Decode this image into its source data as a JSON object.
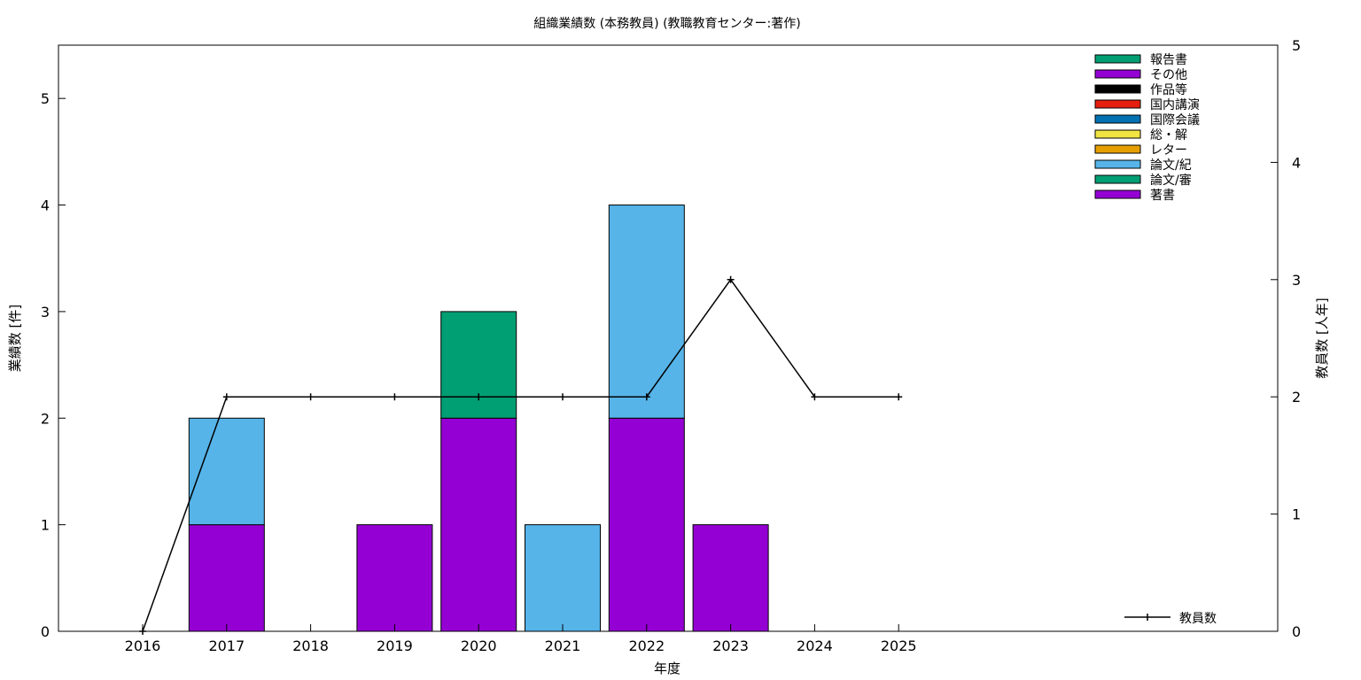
{
  "chart_data": {
    "type": "bar",
    "title": "組織業績数 (本務教員) (教職教育センター:著作)",
    "xlabel": "年度",
    "ylabel": "業績数 [件]",
    "y2label": "教員数 [人年]",
    "categories": [
      "2016",
      "2017",
      "2018",
      "2019",
      "2020",
      "2021",
      "2022",
      "2023",
      "2024",
      "2025"
    ],
    "ylim": [
      0,
      5.5
    ],
    "y2lim": [
      0,
      5
    ],
    "yticks": [
      "0",
      "1",
      "2",
      "3",
      "4",
      "5"
    ],
    "y2ticks": [
      "0",
      "1",
      "2",
      "3",
      "4",
      "5"
    ],
    "stacked": true,
    "legend_position": "top-right",
    "series": [
      {
        "name": "報告書",
        "color": "#009e73",
        "values": [
          0,
          0,
          0,
          0,
          0,
          0,
          0,
          0,
          0,
          0
        ]
      },
      {
        "name": "その他",
        "color": "#9400d3",
        "values": [
          0,
          0,
          0,
          0,
          0,
          0,
          0,
          0,
          0,
          0
        ]
      },
      {
        "name": "作品等",
        "color": "#000000",
        "values": [
          0,
          0,
          0,
          0,
          0,
          0,
          0,
          0,
          0,
          0
        ]
      },
      {
        "name": "国内講演",
        "color": "#e51e10",
        "values": [
          0,
          0,
          0,
          0,
          0,
          0,
          0,
          0,
          0,
          0
        ]
      },
      {
        "name": "国際会議",
        "color": "#0072b2",
        "values": [
          0,
          0,
          0,
          0,
          0,
          0,
          0,
          0,
          0,
          0
        ]
      },
      {
        "name": "総・解",
        "color": "#f0e442",
        "values": [
          0,
          0,
          0,
          0,
          0,
          0,
          0,
          0,
          0,
          0
        ]
      },
      {
        "name": "レター",
        "color": "#e69f00",
        "values": [
          0,
          0,
          0,
          0,
          0,
          0,
          0,
          0,
          0,
          0
        ]
      },
      {
        "name": "論文/紀",
        "color": "#56b4e9",
        "values": [
          0,
          1,
          0,
          0,
          0,
          1,
          2,
          0,
          0,
          0
        ]
      },
      {
        "name": "論文/審",
        "color": "#009e73",
        "values": [
          0,
          0,
          0,
          0,
          1,
          0,
          0,
          0,
          0,
          0
        ]
      },
      {
        "name": "著書",
        "color": "#9400d3",
        "values": [
          0,
          1,
          0,
          1,
          2,
          0,
          2,
          1,
          0,
          0
        ]
      }
    ],
    "line_series": {
      "name": "教員数",
      "color": "#000000",
      "axis": "right",
      "values": [
        0,
        2,
        2,
        2,
        2,
        2,
        2,
        3,
        2,
        2
      ]
    }
  }
}
